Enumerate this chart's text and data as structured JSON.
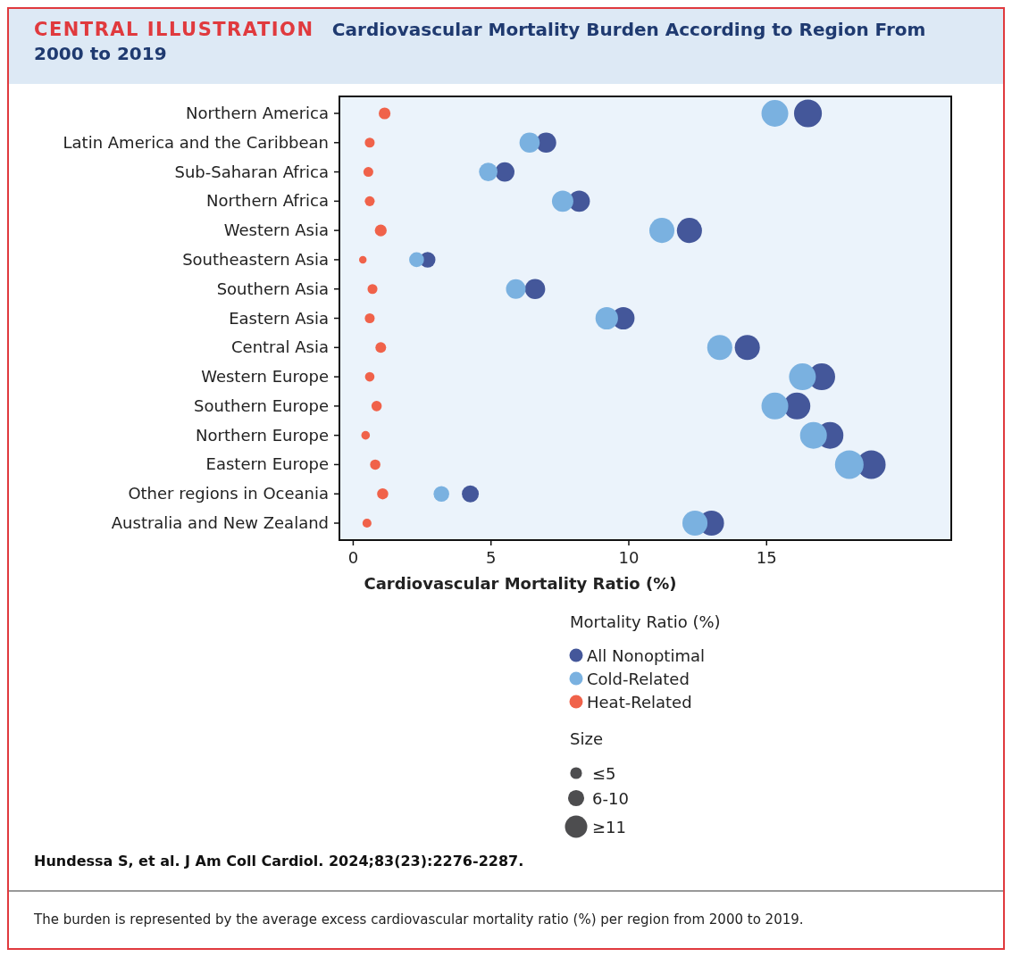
{
  "chart_data": {
    "type": "bubble",
    "title": "CENTRAL ILLUSTRATION",
    "subtitle": "Cardiovascular Mortality Burden According to Region From 2000 to 2019",
    "xlabel": "Cardiovascular Mortality Ratio (%)",
    "legend_title": "Mortality Ratio (%)",
    "legend": "bottom",
    "orientation": "horizontal",
    "categories": [
      "Northern America",
      "Latin America and the Caribbean",
      "Sub-Saharan Africa",
      "Northern Africa",
      "Western Asia",
      "Southeastern Asia",
      "Southern Asia",
      "Eastern Asia",
      "Central Asia",
      "Western Europe",
      "Southern Europe",
      "Northern Europe",
      "Eastern Europe",
      "Other regions in Oceania",
      "Australia and New Zealand"
    ],
    "xlim": [
      -0.5,
      21.7
    ],
    "xticks": [
      0,
      5,
      10,
      15
    ],
    "series": [
      {
        "name": "All Nonoptimal",
        "color": "#44579a",
        "values": [
          16.5,
          7.0,
          5.5,
          8.2,
          12.2,
          2.7,
          6.6,
          9.8,
          14.3,
          17.0,
          16.1,
          17.3,
          18.8,
          4.25,
          13.0
        ],
        "sizes": [
          0.95,
          0.5,
          0.46,
          0.56,
          0.77,
          0.3,
          0.5,
          0.62,
          0.77,
          0.88,
          0.88,
          0.88,
          1,
          0.35,
          0.77
        ]
      },
      {
        "name": "Cold-Related",
        "color": "#7ab1e0",
        "values": [
          15.3,
          6.4,
          4.9,
          7.6,
          11.2,
          2.3,
          5.9,
          9.2,
          13.3,
          16.3,
          15.3,
          16.7,
          18.0,
          3.2,
          12.4
        ],
        "sizes": [
          0.88,
          0.5,
          0.42,
          0.56,
          0.77,
          0.27,
          0.47,
          0.62,
          0.77,
          0.88,
          0.88,
          0.88,
          1,
          0.3,
          0.77
        ]
      },
      {
        "name": "Heat-Related",
        "color": "#f0624a",
        "values": [
          1.14,
          0.6,
          0.55,
          0.6,
          1.0,
          0.35,
          0.7,
          0.6,
          1.0,
          0.6,
          0.85,
          0.45,
          0.8,
          1.07,
          0.5
        ],
        "sizes": [
          0.17,
          0.12,
          0.12,
          0.12,
          0.17,
          0.07,
          0.12,
          0.12,
          0.14,
          0.11,
          0.13,
          0.09,
          0.13,
          0.15,
          0.1
        ]
      }
    ],
    "size_legend": [
      {
        "value": 0.17,
        "label": "≤5"
      },
      {
        "value": 0.32,
        "label": "6-10"
      },
      {
        "value": 0.61,
        "label": "≥11"
      }
    ],
    "annotations": [
      "Size",
      "Hundessa S, et al. J Am Coll Cardiol. 2024;83(23):2276-2287.",
      "The burden is represented by the average excess cardiovascular mortality ratio (%) per region from 2000 to 2019."
    ]
  }
}
